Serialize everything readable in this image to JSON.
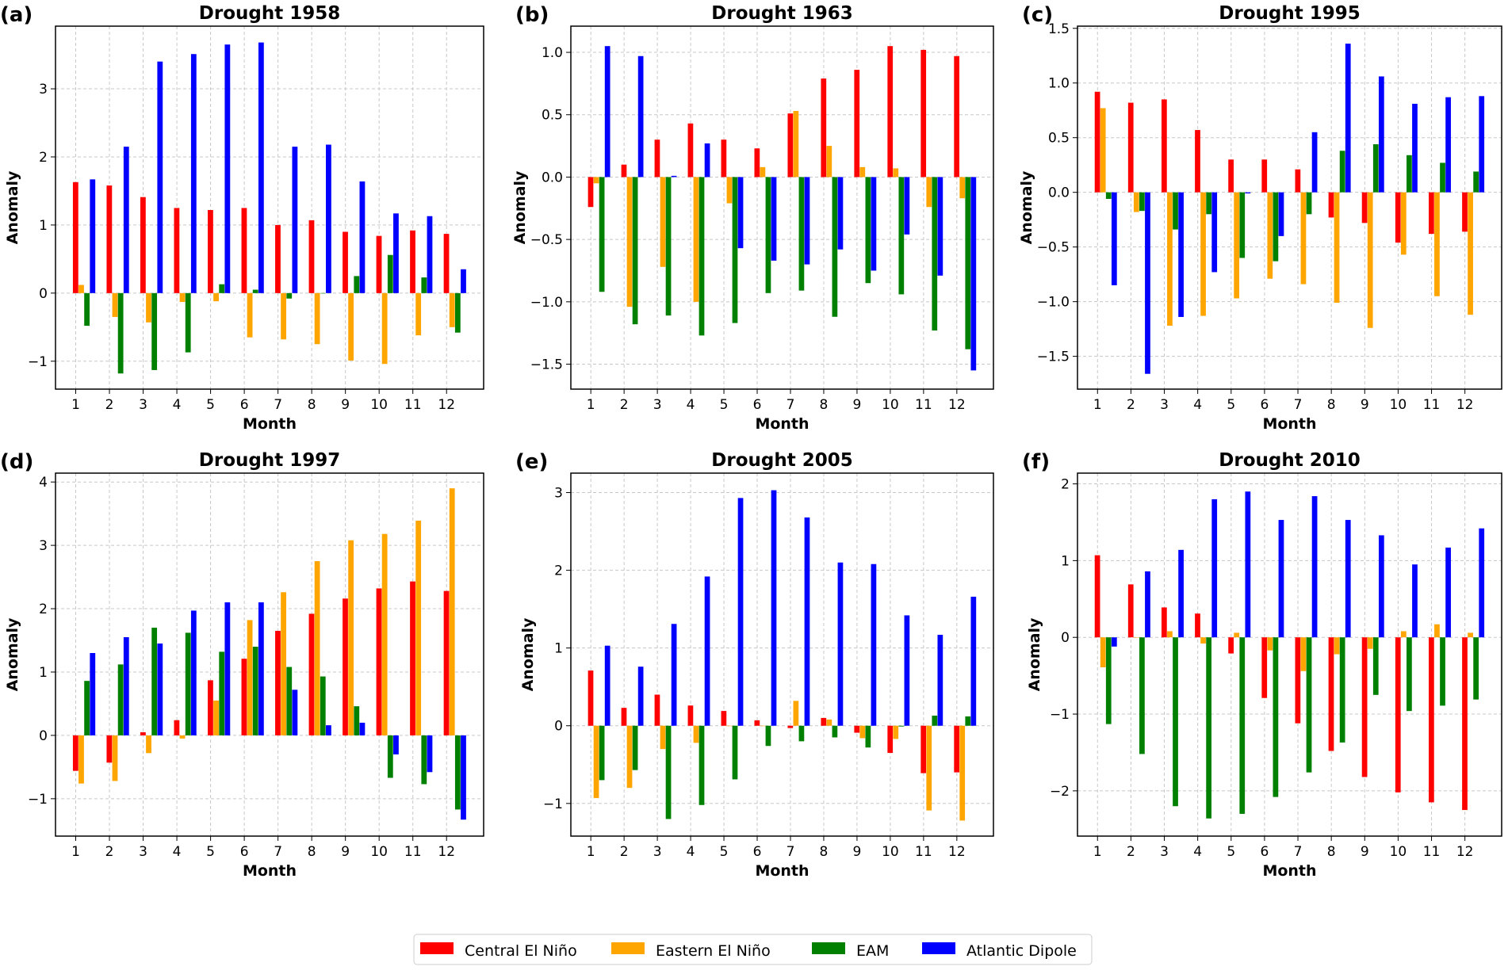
{
  "chart_data": [
    {
      "type": "bar",
      "panel": "(a)",
      "title": "Drought 1958",
      "xlabel": "Month",
      "ylabel": "Anomaly",
      "ylim": [
        -1.41,
        3.92
      ],
      "yticks": [
        -1,
        0,
        1,
        2,
        3
      ],
      "categories": [
        1,
        2,
        3,
        4,
        5,
        6,
        7,
        8,
        9,
        10,
        11,
        12
      ],
      "series": [
        {
          "name": "Central El Niño",
          "values": [
            1.63,
            1.58,
            1.41,
            1.25,
            1.22,
            1.25,
            1.0,
            1.07,
            0.9,
            0.84,
            0.92,
            0.87
          ]
        },
        {
          "name": "Eastern El Niño",
          "values": [
            0.12,
            -0.35,
            -0.43,
            -0.13,
            -0.12,
            -0.65,
            -0.68,
            -0.75,
            -0.99,
            -1.04,
            -0.62,
            -0.5
          ]
        },
        {
          "name": "EAM",
          "values": [
            -0.48,
            -1.18,
            -1.13,
            -0.87,
            0.13,
            0.05,
            -0.08,
            0.0,
            0.25,
            0.56,
            0.23,
            -0.58
          ]
        },
        {
          "name": "Atlantic Dipole",
          "values": [
            1.67,
            2.15,
            3.4,
            3.51,
            3.65,
            3.68,
            2.15,
            2.18,
            1.64,
            1.17,
            1.13,
            0.35
          ]
        }
      ]
    },
    {
      "type": "bar",
      "panel": "(b)",
      "title": "Drought 1963",
      "xlabel": "Month",
      "ylabel": "Anomaly",
      "ylim": [
        -1.7,
        1.21
      ],
      "yticks": [
        -1.5,
        -1.0,
        -0.5,
        0.0,
        0.5,
        1.0
      ],
      "categories": [
        1,
        2,
        3,
        4,
        5,
        6,
        7,
        8,
        9,
        10,
        11,
        12
      ],
      "series": [
        {
          "name": "Central El Niño",
          "values": [
            -0.24,
            0.1,
            0.3,
            0.43,
            0.3,
            0.23,
            0.51,
            0.79,
            0.86,
            1.05,
            1.02,
            0.97
          ]
        },
        {
          "name": "Eastern El Niño",
          "values": [
            -0.05,
            -1.04,
            -0.72,
            -1.0,
            -0.21,
            0.08,
            0.53,
            0.25,
            0.08,
            0.07,
            -0.24,
            -0.17
          ]
        },
        {
          "name": "EAM",
          "values": [
            -0.92,
            -1.18,
            -1.11,
            -1.27,
            -1.17,
            -0.93,
            -0.91,
            -1.12,
            -0.85,
            -0.94,
            -1.23,
            -1.38
          ]
        },
        {
          "name": "Atlantic Dipole",
          "values": [
            1.05,
            0.97,
            0.01,
            0.27,
            -0.57,
            -0.67,
            -0.7,
            -0.58,
            -0.75,
            -0.46,
            -0.79,
            -1.55
          ]
        }
      ]
    },
    {
      "type": "bar",
      "panel": "(c)",
      "title": "Drought 1995",
      "xlabel": "Month",
      "ylabel": "Anomaly",
      "ylim": [
        -1.8,
        1.52
      ],
      "yticks": [
        -1.5,
        -1.0,
        -0.5,
        0.0,
        0.5,
        1.0,
        1.5
      ],
      "categories": [
        1,
        2,
        3,
        4,
        5,
        6,
        7,
        8,
        9,
        10,
        11,
        12
      ],
      "series": [
        {
          "name": "Central El Niño",
          "values": [
            0.92,
            0.82,
            0.85,
            0.57,
            0.3,
            0.3,
            0.21,
            -0.23,
            -0.28,
            -0.46,
            -0.38,
            -0.36
          ]
        },
        {
          "name": "Eastern El Niño",
          "values": [
            0.77,
            -0.18,
            -1.22,
            -1.13,
            -0.97,
            -0.79,
            -0.84,
            -1.01,
            -1.24,
            -0.57,
            -0.95,
            -1.12
          ]
        },
        {
          "name": "EAM",
          "values": [
            -0.06,
            -0.17,
            -0.34,
            -0.2,
            -0.6,
            -0.63,
            -0.2,
            0.38,
            0.44,
            0.34,
            0.27,
            0.19
          ]
        },
        {
          "name": "Atlantic Dipole",
          "values": [
            -0.85,
            -1.66,
            -1.14,
            -0.73,
            -0.01,
            -0.4,
            0.55,
            1.36,
            1.06,
            0.81,
            0.87,
            0.88
          ]
        }
      ]
    },
    {
      "type": "bar",
      "panel": "(d)",
      "title": "Drought 1997",
      "xlabel": "Month",
      "ylabel": "Anomaly",
      "ylim": [
        -1.59,
        4.14
      ],
      "yticks": [
        -1,
        0,
        1,
        2,
        3,
        4
      ],
      "categories": [
        1,
        2,
        3,
        4,
        5,
        6,
        7,
        8,
        9,
        10,
        11,
        12
      ],
      "series": [
        {
          "name": "Central El Niño",
          "values": [
            -0.56,
            -0.43,
            0.05,
            0.24,
            0.87,
            1.21,
            1.65,
            1.92,
            2.16,
            2.32,
            2.43,
            2.28
          ]
        },
        {
          "name": "Eastern El Niño",
          "values": [
            -0.76,
            -0.72,
            -0.28,
            -0.05,
            0.55,
            1.82,
            2.26,
            2.75,
            3.08,
            3.18,
            3.39,
            3.9
          ]
        },
        {
          "name": "EAM",
          "values": [
            0.86,
            1.12,
            1.7,
            1.62,
            1.32,
            1.4,
            1.08,
            0.93,
            0.46,
            -0.67,
            -0.77,
            -1.17
          ]
        },
        {
          "name": "Atlantic Dipole",
          "values": [
            1.3,
            1.55,
            1.45,
            1.97,
            2.1,
            2.1,
            0.72,
            0.16,
            0.2,
            -0.3,
            -0.58,
            -1.33
          ]
        }
      ]
    },
    {
      "type": "bar",
      "panel": "(e)",
      "title": "Drought 2005",
      "xlabel": "Month",
      "ylabel": "Anomaly",
      "ylim": [
        -1.42,
        3.25
      ],
      "yticks": [
        -1,
        0,
        1,
        2,
        3
      ],
      "categories": [
        1,
        2,
        3,
        4,
        5,
        6,
        7,
        8,
        9,
        10,
        11,
        12
      ],
      "series": [
        {
          "name": "Central El Niño",
          "values": [
            0.71,
            0.23,
            0.4,
            0.26,
            0.19,
            0.07,
            -0.03,
            0.1,
            -0.09,
            -0.35,
            -0.61,
            -0.6
          ]
        },
        {
          "name": "Eastern El Niño",
          "values": [
            -0.93,
            -0.8,
            -0.3,
            -0.22,
            0.0,
            0.0,
            0.32,
            0.08,
            -0.16,
            -0.17,
            -1.09,
            -1.22
          ]
        },
        {
          "name": "EAM",
          "values": [
            -0.7,
            -0.57,
            -1.2,
            -1.02,
            -0.69,
            -0.26,
            -0.2,
            -0.15,
            -0.28,
            -0.01,
            0.13,
            0.12
          ]
        },
        {
          "name": "Atlantic Dipole",
          "values": [
            1.03,
            0.76,
            1.31,
            1.92,
            2.93,
            3.03,
            2.68,
            2.1,
            2.08,
            1.42,
            1.17,
            1.66
          ]
        }
      ]
    },
    {
      "type": "bar",
      "panel": "(f)",
      "title": "Drought 2010",
      "xlabel": "Month",
      "ylabel": "Anomaly",
      "ylim": [
        -2.59,
        2.14
      ],
      "yticks": [
        -2,
        -1,
        0,
        1,
        2
      ],
      "categories": [
        1,
        2,
        3,
        4,
        5,
        6,
        7,
        8,
        9,
        10,
        11,
        12
      ],
      "series": [
        {
          "name": "Central El Niño",
          "values": [
            1.07,
            0.69,
            0.39,
            0.31,
            -0.21,
            -0.79,
            -1.12,
            -1.48,
            -1.82,
            -2.02,
            -2.15,
            -2.25
          ]
        },
        {
          "name": "Eastern El Niño",
          "values": [
            -0.39,
            0.0,
            0.08,
            -0.08,
            0.06,
            -0.17,
            -0.44,
            -0.22,
            -0.15,
            0.08,
            0.17,
            0.06
          ]
        },
        {
          "name": "EAM",
          "values": [
            -1.13,
            -1.52,
            -2.2,
            -2.36,
            -2.3,
            -2.08,
            -1.76,
            -1.37,
            -0.75,
            -0.96,
            -0.89,
            -0.81
          ]
        },
        {
          "name": "Atlantic Dipole",
          "values": [
            -0.12,
            0.86,
            1.14,
            1.8,
            1.9,
            1.53,
            1.84,
            1.53,
            1.33,
            0.95,
            1.17,
            1.42
          ]
        }
      ]
    }
  ],
  "legend": {
    "placement": "bottom-center",
    "entries": [
      "Central El Niño",
      "Eastern El Niño",
      "EAM",
      "Atlantic Dipole"
    ]
  },
  "colors": [
    "#ff0000",
    "#ffa500",
    "#008000",
    "#0000ff"
  ]
}
